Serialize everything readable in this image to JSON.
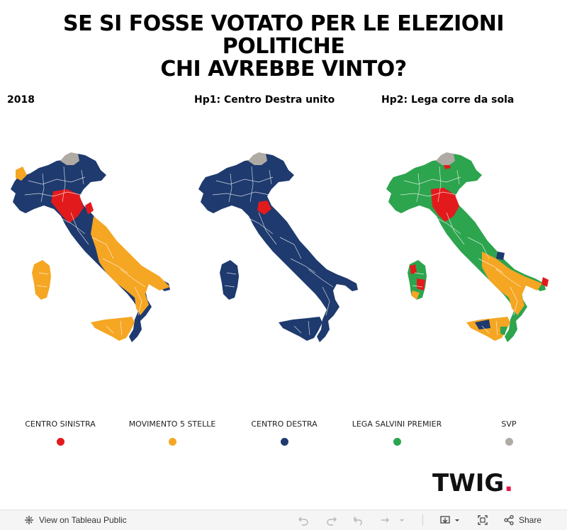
{
  "title": {
    "line1": "SE SI FOSSE VOTATO PER LE ELEZIONI POLITICHE",
    "line2": "CHI AVREBBE VINTO?"
  },
  "panels": [
    {
      "title": "2018"
    },
    {
      "title": "Hp1: Centro Destra unito"
    },
    {
      "title": "Hp2: Lega corre da sola"
    }
  ],
  "legend": [
    {
      "label": "CENTRO SINISTRA",
      "color": "#e31a1c"
    },
    {
      "label": "MOVIMENTO 5 STELLE",
      "color": "#f5a623"
    },
    {
      "label": "CENTRO DESTRA",
      "color": "#1e3a6e"
    },
    {
      "label": "LEGA SALVINI PREMIER",
      "color": "#2da44e"
    },
    {
      "label": "SVP",
      "color": "#b0aaa5"
    }
  ],
  "logo": {
    "text": "TWIG",
    "dot": "."
  },
  "toolbar": {
    "view_label": "View on Tableau Public",
    "share_label": "Share",
    "icons": [
      "tableau-icon",
      "undo-icon",
      "redo-icon",
      "revert-icon",
      "refresh-icon",
      "download-icon",
      "fullscreen-icon",
      "share-icon"
    ]
  }
}
